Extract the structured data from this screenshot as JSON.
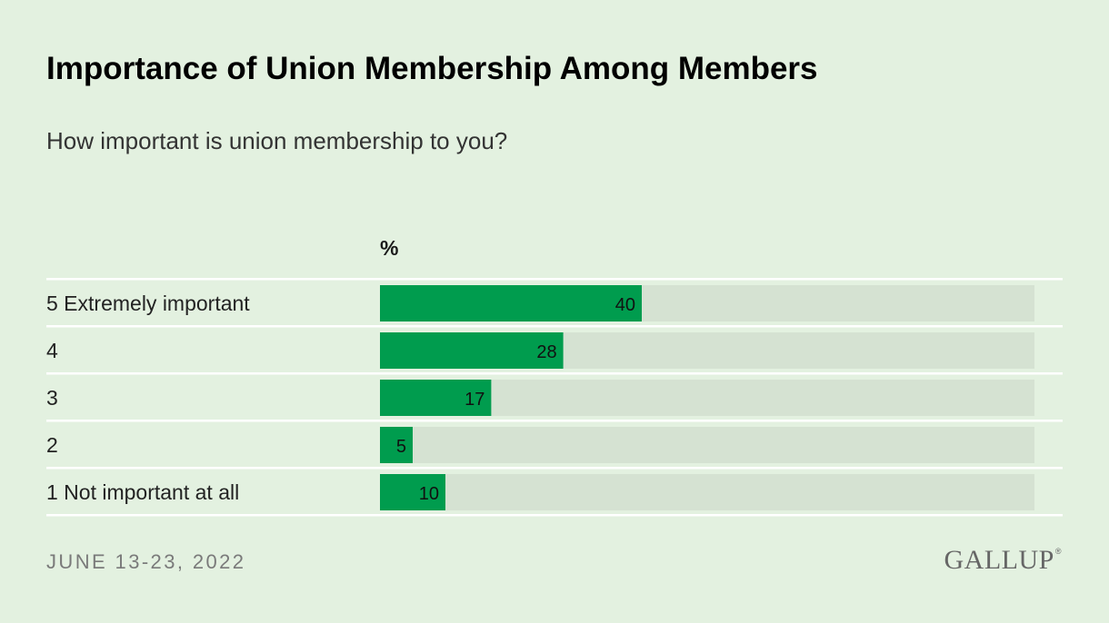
{
  "title": "Importance of Union Membership Among Members",
  "subtitle": "How important is union membership to you?",
  "unit_label": "%",
  "footer": {
    "date": "JUNE 13-23, 2022",
    "logo": "GALLUP",
    "logo_mark": "®"
  },
  "colors": {
    "background": "#e3f1e0",
    "bar": "#009c4e",
    "track": "#d5e2d2",
    "divider": "#ffffff"
  },
  "chart_data": {
    "type": "bar",
    "orientation": "horizontal",
    "categories": [
      "5 Extremely important",
      "4",
      "3",
      "2",
      "1 Not important at all"
    ],
    "values": [
      40,
      28,
      17,
      5,
      10
    ],
    "xlim": [
      0,
      100
    ],
    "title": "Importance of Union Membership Among Members",
    "subtitle": "How important is union membership to you?",
    "unit": "%",
    "grid": false,
    "legend": "none"
  }
}
